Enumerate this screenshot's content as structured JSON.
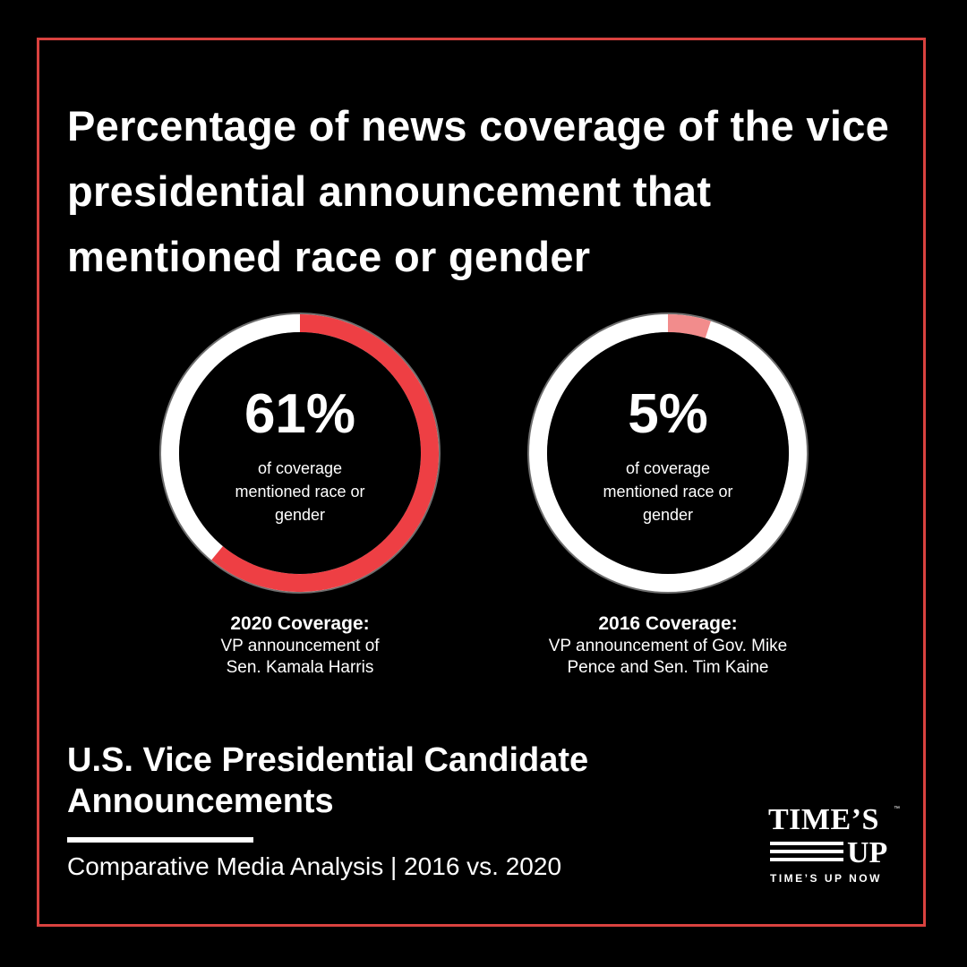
{
  "title": "Percentage of news coverage of the vice presidential announcement that mentioned race or gender",
  "chart_data": [
    {
      "type": "pie",
      "subtype": "donut",
      "value": 61,
      "value_label": "61%",
      "description": "of coverage mentioned race or gender",
      "caption_title": "2020 Coverage:",
      "caption_text": "VP announcement of Sen. Kamala Harris",
      "fill_color": "#ee3f44",
      "track_color": "#ffffff"
    },
    {
      "type": "pie",
      "subtype": "donut",
      "value": 5,
      "value_label": "5%",
      "description": "of coverage mentioned race or gender",
      "caption_title": "2016 Coverage:",
      "caption_text": "VP announcement of Gov. Mike Pence and Sen. Tim Kaine",
      "fill_color": "#f28c8c",
      "track_color": "#ffffff"
    }
  ],
  "footer": {
    "subtitle": "U.S. Vice Presidential Candidate Announcements",
    "tagline": "Comparative Media Analysis | 2016 vs. 2020"
  },
  "logo": {
    "word1": "TIME’S",
    "word2": "UP",
    "tm": "™",
    "sub": "TIME’S UP NOW"
  },
  "colors": {
    "background": "#000000",
    "border": "#d9423f",
    "text": "#ffffff"
  }
}
